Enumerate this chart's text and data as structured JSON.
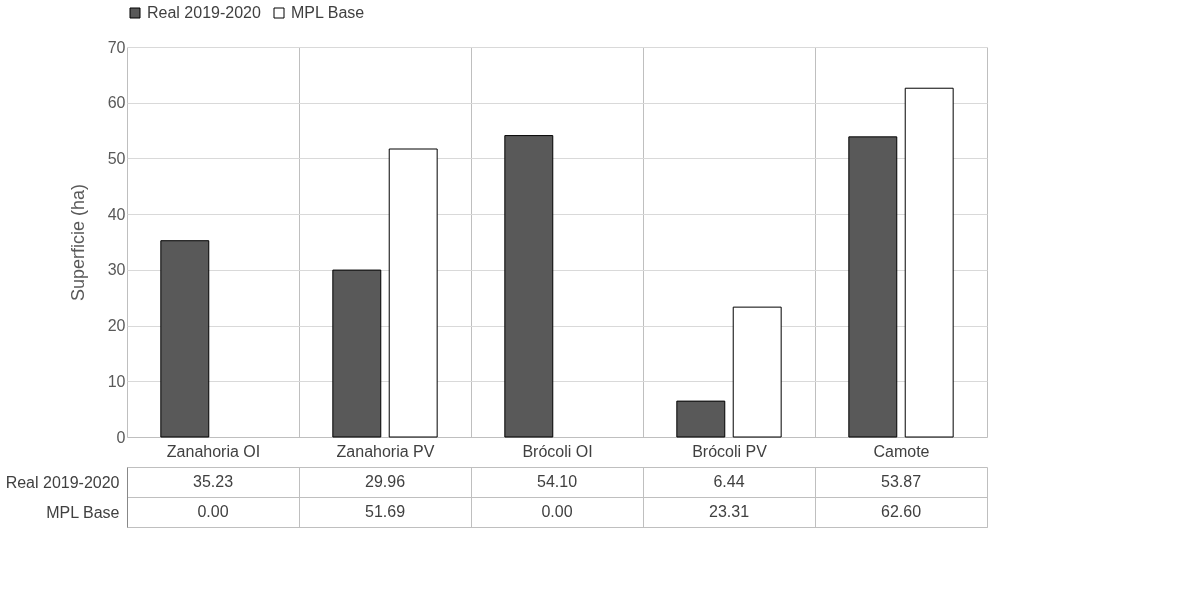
{
  "chart_data": {
    "type": "bar",
    "ylabel": "Superficie (ha)",
    "categories": [
      "Zanahoria OI",
      "Zanahoria PV",
      "Brócoli OI",
      "Brócoli PV",
      "Camote"
    ],
    "series": [
      {
        "name": "Real 2019-2020",
        "color": "#595959",
        "values": [
          35.23,
          29.96,
          54.1,
          6.44,
          53.87
        ],
        "value_labels": [
          "35.23",
          "29.96",
          "54.10",
          "6.44",
          "53.87"
        ]
      },
      {
        "name": "MPL Base",
        "color": "#ffffff",
        "values": [
          0.0,
          51.69,
          0.0,
          23.31,
          62.6
        ],
        "value_labels": [
          "0.00",
          "51.69",
          "0.00",
          "23.31",
          "62.60"
        ]
      }
    ],
    "ylim": [
      0,
      70
    ],
    "yticks": [
      0,
      10,
      20,
      30,
      40,
      50,
      60,
      70
    ],
    "grid": "y",
    "legend": "top"
  }
}
